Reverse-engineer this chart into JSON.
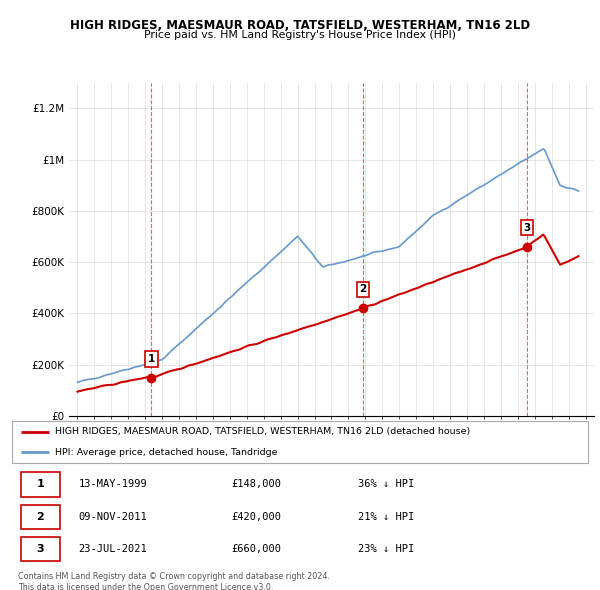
{
  "title1": "HIGH RIDGES, MAESMAUR ROAD, TATSFIELD, WESTERHAM, TN16 2LD",
  "title2": "Price paid vs. HM Land Registry's House Price Index (HPI)",
  "legend_line1": "HIGH RIDGES, MAESMAUR ROAD, TATSFIELD, WESTERHAM, TN16 2LD (detached house)",
  "legend_line2": "HPI: Average price, detached house, Tandridge",
  "footer": "Contains HM Land Registry data © Crown copyright and database right 2024.\nThis data is licensed under the Open Government Licence v3.0.",
  "sale_color": "#cc0000",
  "hpi_color": "#6699cc",
  "purchases": [
    {
      "num": 1,
      "date": "13-MAY-1999",
      "x": 1999.37,
      "price": 148000,
      "label": "36% ↓ HPI"
    },
    {
      "num": 2,
      "date": "09-NOV-2011",
      "x": 2011.85,
      "price": 420000,
      "label": "21% ↓ HPI"
    },
    {
      "num": 3,
      "date": "23-JUL-2021",
      "x": 2021.55,
      "price": 660000,
      "label": "23% ↓ HPI"
    }
  ],
  "ylim": [
    0,
    1300000
  ],
  "xlim": [
    1994.5,
    2025.5
  ],
  "yticks": [
    0,
    200000,
    400000,
    600000,
    800000,
    1000000,
    1200000
  ],
  "ytick_labels": [
    "£0",
    "£200K",
    "£400K",
    "£600K",
    "£800K",
    "£1M",
    "£1.2M"
  ],
  "xticks": [
    1995,
    1996,
    1997,
    1998,
    1999,
    2000,
    2001,
    2002,
    2003,
    2004,
    2005,
    2006,
    2007,
    2008,
    2009,
    2010,
    2011,
    2012,
    2013,
    2014,
    2015,
    2016,
    2017,
    2018,
    2019,
    2020,
    2021,
    2022,
    2023,
    2024,
    2025
  ],
  "table_rows": [
    {
      "num": 1,
      "date": "13-MAY-1999",
      "price": "£148,000",
      "pct": "36% ↓ HPI"
    },
    {
      "num": 2,
      "date": "09-NOV-2011",
      "price": "£420,000",
      "pct": "21% ↓ HPI"
    },
    {
      "num": 3,
      "date": "23-JUL-2021",
      "price": "£660,000",
      "pct": "23% ↓ HPI"
    }
  ]
}
